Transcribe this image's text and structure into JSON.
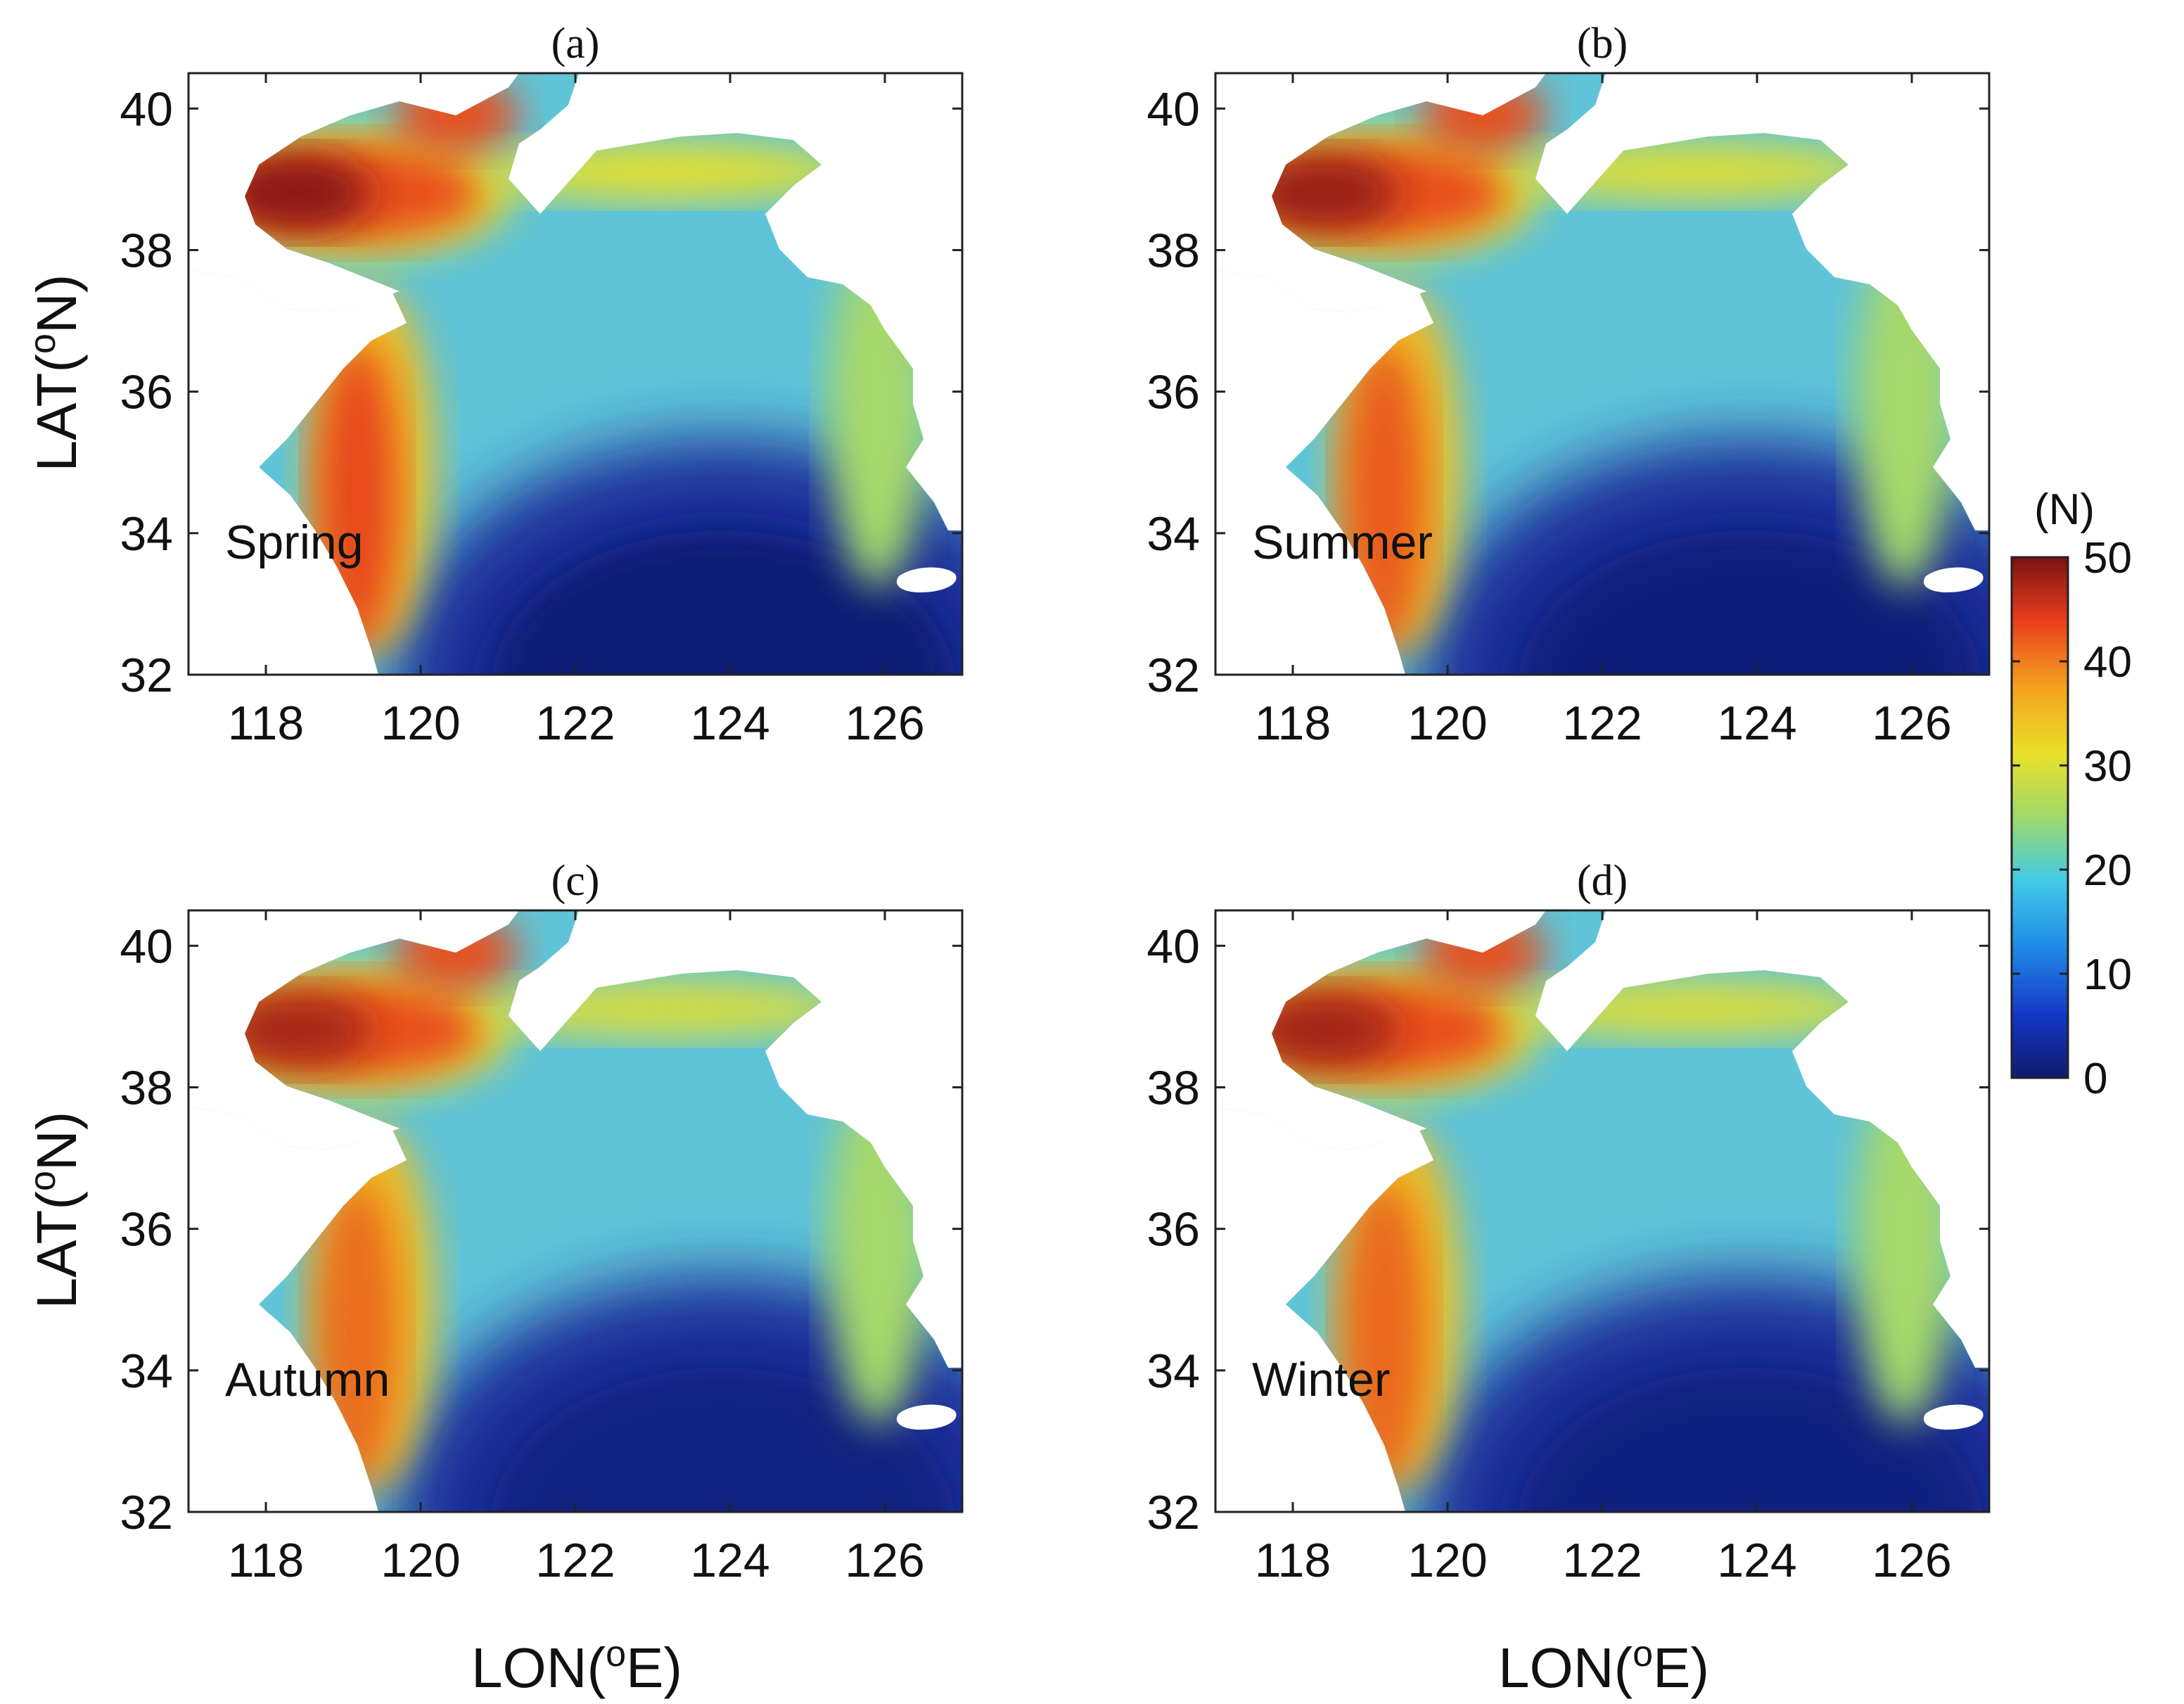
{
  "panels": [
    {
      "label": "(a)",
      "season": "Spring",
      "intensity": 1.0
    },
    {
      "label": "(b)",
      "season": "Summer",
      "intensity": 0.85
    },
    {
      "label": "(c)",
      "season": "Autumn",
      "intensity": 0.7
    },
    {
      "label": "(d)",
      "season": "Winter",
      "intensity": 0.75
    }
  ],
  "axes": {
    "xlabel": "LON(°E)",
    "xlabel_main": "LON(",
    "xlabel_sup": "o",
    "xlabel_end": "E)",
    "ylabel_main": "LAT(",
    "ylabel_sup": "o",
    "ylabel_end": "N)",
    "xticks": [
      "118",
      "120",
      "122",
      "124",
      "126"
    ],
    "yticks": [
      "32",
      "34",
      "36",
      "38",
      "40"
    ],
    "xlim": [
      117,
      127
    ],
    "ylim": [
      32,
      40.5
    ]
  },
  "colorbar": {
    "unit": "(N)",
    "ticks": [
      "0",
      "10",
      "20",
      "30",
      "40",
      "50"
    ],
    "range": [
      0,
      50
    ],
    "colormap": "jet",
    "colors": [
      "#00007f",
      "#0000ff",
      "#0080ff",
      "#00ffff",
      "#80ff80",
      "#ffff00",
      "#ff8000",
      "#ff0000",
      "#7f0000"
    ]
  }
}
